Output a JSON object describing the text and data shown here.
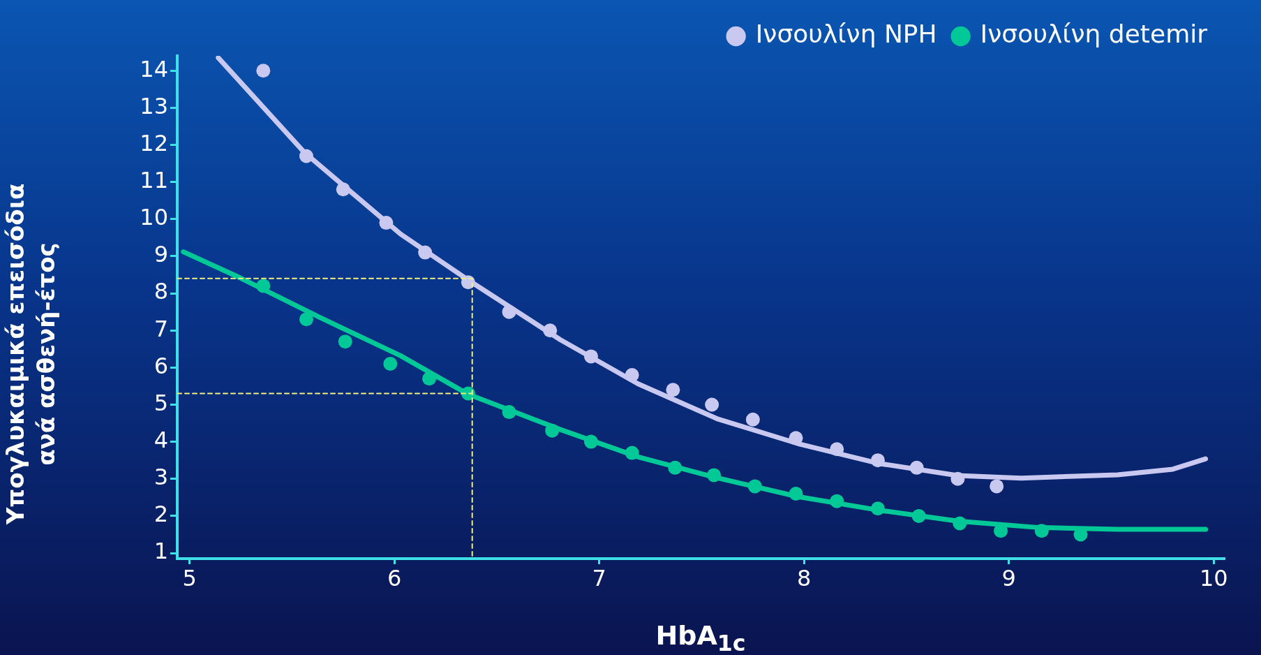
{
  "chart_data": {
    "type": "scatter",
    "xlabel": "HbA$_{1c}$",
    "ylabel": "Υπογλυκαιμικά επεισόδια\nανά ασθενή-έτος",
    "xlim": [
      4.94,
      10.05
    ],
    "ylim": [
      0.85,
      14.4
    ],
    "xticks": [
      5,
      6,
      7,
      8,
      9,
      10
    ],
    "yticks": [
      1,
      2,
      3,
      4,
      5,
      6,
      7,
      8,
      9,
      10,
      11,
      12,
      13,
      14
    ],
    "grid": false,
    "legend": "top right",
    "marker": "circle",
    "series": [
      {
        "name": "Ινσουλίνη NPH",
        "color": "#c8c8f0",
        "x": [
          5.36,
          5.57,
          5.75,
          5.96,
          6.15,
          6.36,
          6.56,
          6.76,
          6.96,
          7.16,
          7.36,
          7.55,
          7.75,
          7.96,
          8.16,
          8.36,
          8.55,
          8.75,
          8.94
        ],
        "values": [
          14.0,
          11.7,
          10.8,
          9.9,
          9.1,
          8.3,
          7.5,
          7.0,
          6.3,
          5.8,
          5.4,
          5.0,
          4.6,
          4.1,
          3.8,
          3.5,
          3.3,
          3.0,
          2.8
        ]
      },
      {
        "type": "line",
        "marker": "none",
        "color": "#c8c8f0",
        "x": [
          5.14,
          5.56,
          6.03,
          6.36,
          6.81,
          7.19,
          7.58,
          7.97,
          8.36,
          8.75,
          9.06,
          9.53,
          9.8,
          9.96
        ],
        "values": [
          14.35,
          11.8,
          9.6,
          8.36,
          6.75,
          5.56,
          4.61,
          3.95,
          3.42,
          3.09,
          3.02,
          3.11,
          3.26,
          3.54
        ]
      },
      {
        "name": "Ινσουλίνη detemir",
        "color": "#00c896",
        "x": [
          5.36,
          5.57,
          5.76,
          5.98,
          6.17,
          6.36,
          6.56,
          6.77,
          6.96,
          7.16,
          7.37,
          7.56,
          7.76,
          7.96,
          8.16,
          8.36,
          8.56,
          8.76,
          8.96,
          9.16,
          9.35
        ],
        "values": [
          8.2,
          7.3,
          6.7,
          6.1,
          5.7,
          5.3,
          4.8,
          4.3,
          4.0,
          3.7,
          3.3,
          3.1,
          2.8,
          2.6,
          2.4,
          2.2,
          2.0,
          1.8,
          1.6,
          1.6,
          1.5
        ]
      },
      {
        "type": "line",
        "marker": "none",
        "color": "#00c896",
        "x": [
          4.97,
          5.25,
          5.64,
          6.03,
          6.36,
          6.81,
          7.19,
          7.58,
          7.97,
          8.36,
          8.75,
          9.14,
          9.53,
          9.96
        ],
        "values": [
          9.12,
          8.41,
          7.34,
          6.32,
          5.28,
          4.33,
          3.59,
          3.02,
          2.52,
          2.16,
          1.86,
          1.69,
          1.64,
          1.64
        ]
      },
      {
        "type": "line",
        "marker": "none",
        "color": "#f0f080",
        "line_style": "dashed",
        "x": [
          4.94,
          6.38,
          6.38
        ],
        "values": [
          8.4,
          8.4,
          0.85
        ]
      },
      {
        "type": "line",
        "marker": "none",
        "color": "#f0f080",
        "line_style": "dashed",
        "x": [
          4.94,
          6.38
        ],
        "values": [
          5.3,
          5.3
        ]
      }
    ]
  }
}
